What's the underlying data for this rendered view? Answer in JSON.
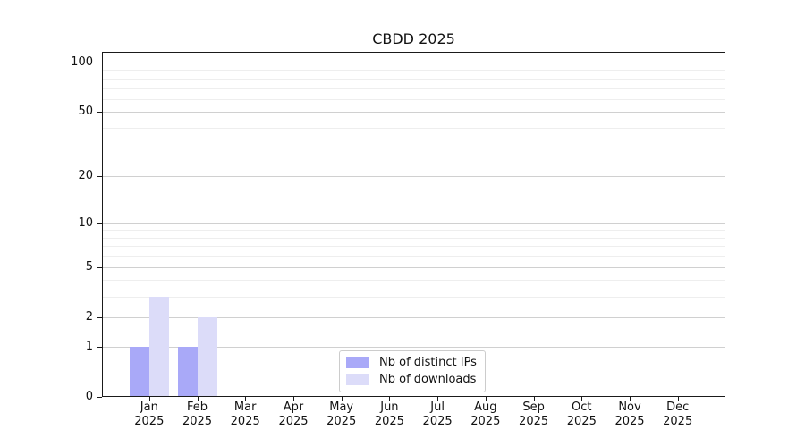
{
  "title": "CBDD 2025",
  "chart_data": {
    "type": "bar",
    "title": "CBDD 2025",
    "yscale": "log1p",
    "grid": true,
    "legend_position": "lower center",
    "xlabel": "",
    "ylabel": "",
    "ylim": [
      0,
      116
    ],
    "y_ticks": [
      0,
      1,
      2,
      5,
      10,
      20,
      50,
      100
    ],
    "y_tick_labels": [
      "0",
      "1",
      "2",
      "5",
      "10",
      "20",
      "50",
      "100"
    ],
    "y_minor_ticks": [
      3,
      4,
      6,
      7,
      8,
      9,
      30,
      40,
      60,
      70,
      80,
      90
    ],
    "categories": [
      "Jan 2025",
      "Feb 2025",
      "Mar 2025",
      "Apr 2025",
      "May 2025",
      "Jun 2025",
      "Jul 2025",
      "Aug 2025",
      "Sep 2025",
      "Oct 2025",
      "Nov 2025",
      "Dec 2025"
    ],
    "x_tick_labels": [
      {
        "month": "Jan",
        "year": "2025"
      },
      {
        "month": "Feb",
        "year": "2025"
      },
      {
        "month": "Mar",
        "year": "2025"
      },
      {
        "month": "Apr",
        "year": "2025"
      },
      {
        "month": "May",
        "year": "2025"
      },
      {
        "month": "Jun",
        "year": "2025"
      },
      {
        "month": "Jul",
        "year": "2025"
      },
      {
        "month": "Aug",
        "year": "2025"
      },
      {
        "month": "Sep",
        "year": "2025"
      },
      {
        "month": "Oct",
        "year": "2025"
      },
      {
        "month": "Nov",
        "year": "2025"
      },
      {
        "month": "Dec",
        "year": "2025"
      }
    ],
    "series": [
      {
        "name": "Nb of distinct IPs",
        "color": "#a9a9f8",
        "values": [
          1,
          1,
          0,
          0,
          0,
          0,
          0,
          0,
          0,
          0,
          0,
          0
        ]
      },
      {
        "name": "Nb of downloads",
        "color": "#dcdcf9",
        "values": [
          3,
          2,
          0,
          0,
          0,
          0,
          0,
          0,
          0,
          0,
          0,
          0
        ]
      }
    ]
  },
  "colors": {
    "background": "#ffffff",
    "spine": "#1a1a1a",
    "grid_major": "#d0d0d0",
    "grid_minor": "#eeeeee",
    "text": "#111111",
    "legend_border": "#cccccc"
  }
}
